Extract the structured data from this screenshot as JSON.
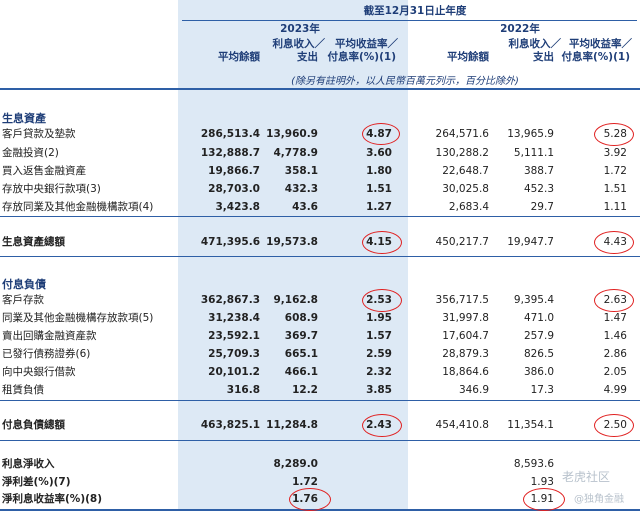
{
  "header": {
    "period": "截至12月31日止年度",
    "year_2023": "2023年",
    "year_2022": "2022年",
    "col_avg_balance": "平均餘額",
    "col_interest": [
      "利息收入／",
      "支出"
    ],
    "col_rate": [
      "平均收益率／",
      "付息率(%)(1)"
    ],
    "note": "(除另有註明外，以人民幣百萬元列示，百分比除外)"
  },
  "sections": {
    "assets": "生息資產",
    "liabilities": "付息負債"
  },
  "rows": [
    {
      "label": "客戶貸款及墊款",
      "v": [
        "286,513.4",
        "13,960.9",
        "4.87",
        "264,571.6",
        "13,965.9",
        "5.28"
      ]
    },
    {
      "label": "金融投資(2)",
      "v": [
        "132,888.7",
        "4,778.9",
        "3.60",
        "130,288.2",
        "5,111.1",
        "3.92"
      ]
    },
    {
      "label": "買入返售金融資產",
      "v": [
        "19,866.7",
        "358.1",
        "1.80",
        "22,648.7",
        "388.7",
        "1.72"
      ]
    },
    {
      "label": "存放中央銀行款項(3)",
      "v": [
        "28,703.0",
        "432.3",
        "1.51",
        "30,025.8",
        "452.3",
        "1.51"
      ]
    },
    {
      "label": "存放同業及其他金融機構款項(4)",
      "v": [
        "3,423.8",
        "43.6",
        "1.27",
        "2,683.4",
        "29.7",
        "1.11"
      ]
    },
    {
      "label": "生息資產總額",
      "v": [
        "471,395.6",
        "19,573.8",
        "4.15",
        "450,217.7",
        "19,947.7",
        "4.43"
      ]
    },
    {
      "label": "客戶存款",
      "v": [
        "362,867.3",
        "9,162.8",
        "2.53",
        "356,717.5",
        "9,395.4",
        "2.63"
      ]
    },
    {
      "label": "同業及其他金融機構存放款項(5)",
      "v": [
        "31,238.4",
        "608.9",
        "1.95",
        "31,997.8",
        "471.0",
        "1.47"
      ]
    },
    {
      "label": "賣出回購金融資產款",
      "v": [
        "23,592.1",
        "369.7",
        "1.57",
        "17,604.7",
        "257.9",
        "1.46"
      ]
    },
    {
      "label": "已發行債務證券(6)",
      "v": [
        "25,709.3",
        "665.1",
        "2.59",
        "28,879.3",
        "826.5",
        "2.86"
      ]
    },
    {
      "label": "向中央銀行借款",
      "v": [
        "20,101.2",
        "466.1",
        "2.32",
        "18,864.6",
        "386.0",
        "2.05"
      ]
    },
    {
      "label": "租賃負債",
      "v": [
        "316.8",
        "12.2",
        "3.85",
        "346.9",
        "17.3",
        "4.99"
      ]
    },
    {
      "label": "付息負債總額",
      "v": [
        "463,825.1",
        "11,284.8",
        "2.43",
        "454,410.8",
        "11,354.1",
        "2.50"
      ]
    },
    {
      "label": "利息淨收入",
      "v": [
        "",
        "8,289.0",
        "",
        "",
        "8,593.6",
        ""
      ]
    },
    {
      "label": "淨利差(%)(7)",
      "v": [
        "",
        "1.72",
        "",
        "",
        "1.93",
        ""
      ]
    },
    {
      "label": "淨利息收益率(%)(8)",
      "v": [
        "",
        "1.76",
        "",
        "",
        "1.91",
        ""
      ]
    }
  ],
  "watermarks": [
    "老虎社区",
    "@独角金融"
  ],
  "colors": {
    "header": "#1f3e78",
    "shade": "#dde9f5",
    "circle": "#e02020",
    "rule": "#2e5fa6"
  }
}
